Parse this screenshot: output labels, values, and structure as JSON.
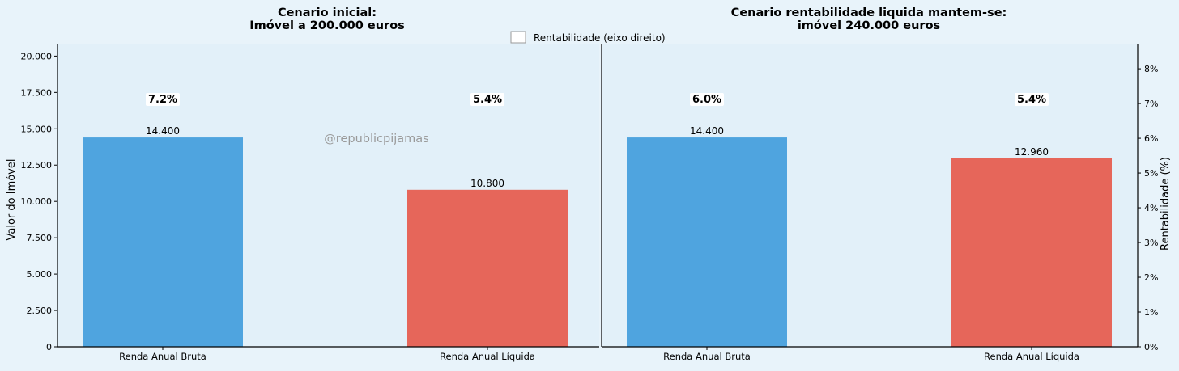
{
  "colors": {
    "page_background": "#e8f3fa",
    "plot_background": "#e2f0f9",
    "bar_bruta": "#4fa4df",
    "bar_liquida": "#e6665a",
    "axis": "#000000",
    "watermark": "#9a9a9a"
  },
  "legend": {
    "label": "Rentabilidade (eixo direito)",
    "placement": "top-center"
  },
  "watermark": "@republicpijamas",
  "chart_data": [
    {
      "type": "bar",
      "title": "Cenario inicial:\nImóvel a 200.000 euros",
      "ylabel": "Valor do Imóvel",
      "ylim": [
        0,
        20800
      ],
      "yticks": [
        0,
        2500,
        5000,
        7500,
        10000,
        12500,
        15000,
        17500,
        20000
      ],
      "ytick_labels": [
        "0",
        "2.500",
        "5.000",
        "7.500",
        "10.000",
        "12.500",
        "15.000",
        "17.500",
        "20.000"
      ],
      "categories": [
        "Renda Anual Bruta",
        "Renda Anual Líquida"
      ],
      "values": [
        14400,
        10800
      ],
      "value_labels": [
        "14.400",
        "10.800"
      ],
      "rentabilidade_labels": [
        "7.2%",
        "5.4%"
      ]
    },
    {
      "type": "bar",
      "title": "Cenario rentabilidade liquida mantem-se:\nimóvel 240.000 euros",
      "y2label": "Rentabilidade (%)",
      "ylim": [
        0,
        20800
      ],
      "y2lim": [
        0,
        8.7
      ],
      "y2ticks": [
        0,
        1,
        2,
        3,
        4,
        5,
        6,
        7,
        8
      ],
      "y2tick_labels": [
        "0%",
        "1%",
        "2%",
        "3%",
        "4%",
        "5%",
        "6%",
        "7%",
        "8%"
      ],
      "categories": [
        "Renda Anual Bruta",
        "Renda Anual Líquida"
      ],
      "values": [
        14400,
        12960
      ],
      "value_labels": [
        "14.400",
        "12.960"
      ],
      "rentabilidade_labels": [
        "6.0%",
        "5.4%"
      ]
    }
  ]
}
